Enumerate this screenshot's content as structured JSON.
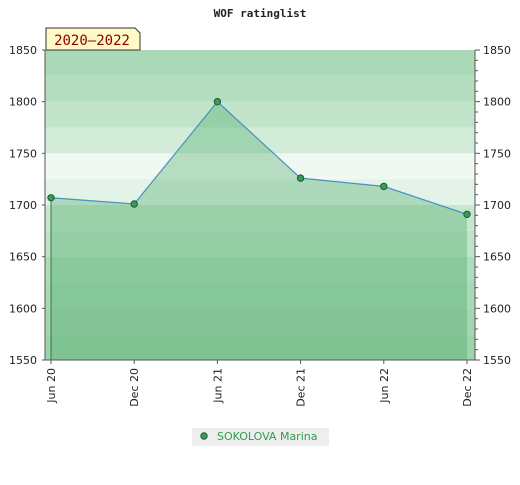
{
  "chart_data": {
    "type": "area",
    "title": "WOF ratinglist",
    "period_badge": "2020–2022",
    "xlabel": "",
    "ylabel": "",
    "categories": [
      "Jun 20",
      "Dec 20",
      "Jun 21",
      "Dec 21",
      "Jun 22",
      "Dec 22"
    ],
    "ylim": [
      1550,
      1850
    ],
    "yticks": [
      1550,
      1600,
      1650,
      1700,
      1750,
      1800,
      1850
    ],
    "y_tick_labels": [
      "1550",
      "1600",
      "1650",
      "1700",
      "1750",
      "1800",
      "1850"
    ],
    "series": [
      {
        "name": "SOKOLOVA Marina",
        "values": [
          1707,
          1701,
          1800,
          1726,
          1718,
          1691
        ]
      }
    ],
    "grid": true,
    "legend": "bottom-center",
    "colors": {
      "line": "#4a90c2",
      "fill": "#3aa35a",
      "marker": "#3a9a5a",
      "legend_text": "#2e9e4e",
      "badge_bg": "#fff9c8",
      "badge_text": "#8b0000"
    }
  }
}
